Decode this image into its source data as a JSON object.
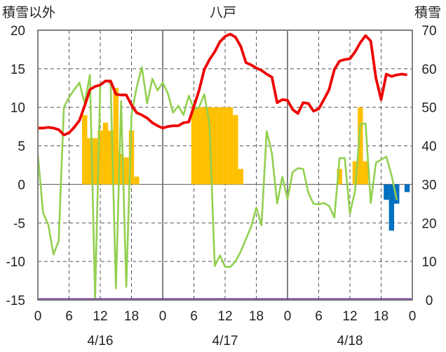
{
  "chart_data": {
    "type": "line",
    "title": "八戸",
    "left_axis_label": "積雪以外",
    "right_axis_label": "積雪",
    "y_left_lim": [
      -15,
      20
    ],
    "y_left_ticks": [
      "20",
      "15",
      "10",
      "5",
      "0",
      "-5",
      "-10",
      "-15"
    ],
    "y_right_lim": [
      0,
      70
    ],
    "y_right_ticks": [
      "70",
      "60",
      "50",
      "40",
      "30",
      "20",
      "10",
      "0"
    ],
    "x_lim": [
      0,
      72
    ],
    "x_hour_ticks": [
      "0",
      "6",
      "12",
      "18",
      "0",
      "6",
      "12",
      "18",
      "0",
      "6",
      "12",
      "18",
      "0"
    ],
    "date_labels": [
      "4/16",
      "4/17",
      "4/18"
    ],
    "grid": true,
    "colors": {
      "red_series": "#ee0000",
      "green_series": "#92d050",
      "orange_bars": "#ffc000",
      "blue_bars": "#0070c0",
      "purple_line": "#7030a0",
      "frame": "#808080",
      "grid": "#555555"
    },
    "red_series": {
      "x": [
        0,
        1,
        2,
        3,
        4,
        5,
        6,
        7,
        8,
        9,
        10,
        11,
        12,
        13,
        14,
        15,
        16,
        17,
        18,
        19,
        20,
        21,
        22,
        23,
        24,
        25,
        26,
        27,
        28,
        29,
        30,
        31,
        32,
        33,
        34,
        35,
        36,
        37,
        38,
        39,
        40,
        41,
        42,
        43,
        44,
        45,
        46,
        47,
        48,
        49,
        50,
        51,
        52,
        53,
        54,
        55,
        56,
        57,
        58,
        59,
        60,
        61,
        62,
        63,
        64,
        65,
        66,
        67,
        68,
        69,
        70,
        71
      ],
      "y": [
        7.3,
        7.3,
        7.4,
        7.3,
        7.1,
        6.4,
        6.7,
        7.4,
        8.3,
        10.2,
        12.3,
        12.7,
        12.9,
        13.4,
        13.4,
        11.7,
        11.6,
        11.6,
        10.3,
        9.3,
        9.0,
        8.6,
        8.0,
        7.6,
        7.3,
        7.5,
        7.6,
        7.6,
        8.0,
        8.1,
        10.1,
        12.2,
        14.9,
        16.2,
        17.2,
        18.5,
        19.2,
        19.5,
        19.1,
        17.9,
        15.8,
        15.5,
        15.1,
        14.8,
        14.3,
        13.9,
        10.6,
        11.0,
        10.9,
        9.7,
        9.2,
        10.6,
        10.5,
        9.5,
        9.8,
        11.0,
        12.3,
        14.9,
        16.0,
        16.2,
        16.3,
        17.2,
        18.4,
        19.3,
        18.6,
        13.8,
        11.0,
        14.3,
        14.0,
        14.2,
        14.3,
        14.2
      ]
    },
    "green_series": {
      "x": [
        0,
        1,
        2,
        3,
        4,
        5,
        6,
        7,
        8,
        9,
        10,
        11,
        12,
        13,
        14,
        15,
        16,
        17,
        18,
        19,
        20,
        21,
        22,
        23,
        24,
        25,
        26,
        27,
        28,
        29,
        30,
        31,
        32,
        33,
        34,
        35,
        36,
        37,
        38,
        39,
        40,
        41,
        42,
        43,
        44,
        45,
        46,
        47,
        48,
        49,
        50,
        51,
        52,
        53,
        54,
        55,
        56,
        57,
        58,
        59,
        60,
        61,
        62,
        63,
        64,
        65,
        66,
        67,
        68,
        69,
        70,
        71
      ],
      "y": [
        3.9,
        -3.7,
        -5.2,
        -9.1,
        -7.3,
        10.0,
        11.3,
        12.3,
        13.2,
        10.5,
        14.2,
        -14.7,
        13.0,
        13.5,
        13.1,
        -13.5,
        10.8,
        -13.3,
        9.0,
        12.6,
        15.2,
        10.5,
        13.7,
        12.2,
        13.2,
        11.8,
        9.3,
        10.2,
        9.0,
        11.5,
        9.8,
        10.0,
        11.7,
        7.8,
        -10.6,
        -9.2,
        -10.7,
        -10.7,
        -10.0,
        -8.7,
        -7.1,
        -5.5,
        -3.0,
        -5.3,
        6.9,
        4.0,
        -2.5,
        1.0,
        -1.9,
        1.6,
        2.1,
        2.0,
        -1.1,
        -2.5,
        -2.6,
        -2.4,
        -2.8,
        -4.3,
        3.4,
        3.4,
        -3.8,
        -0.8,
        7.8,
        7.9,
        -2.4,
        2.8,
        3.2,
        3.6,
        1.2,
        -2.0,
        null,
        null
      ]
    },
    "orange_bars": {
      "x": [
        9,
        10,
        11,
        12,
        13,
        14,
        15,
        16,
        17,
        18,
        19,
        30,
        31,
        32,
        33,
        34,
        35,
        36,
        37,
        38,
        39,
        58,
        61,
        62,
        63
      ],
      "y": [
        9.0,
        6.0,
        6.0,
        7.0,
        8.0,
        7.0,
        12.5,
        4.0,
        3.5,
        7.0,
        1.0,
        10.0,
        10.0,
        10.0,
        10.0,
        10.0,
        10.0,
        10.0,
        10.0,
        9.0,
        2.0,
        2.0,
        3.0,
        10.0,
        3.0
      ]
    },
    "blue_bars": {
      "x": [
        67,
        68,
        69,
        71
      ],
      "y": [
        -2.0,
        -6.0,
        -2.5,
        -1.0
      ]
    },
    "purple_line": {
      "value": 0
    }
  }
}
